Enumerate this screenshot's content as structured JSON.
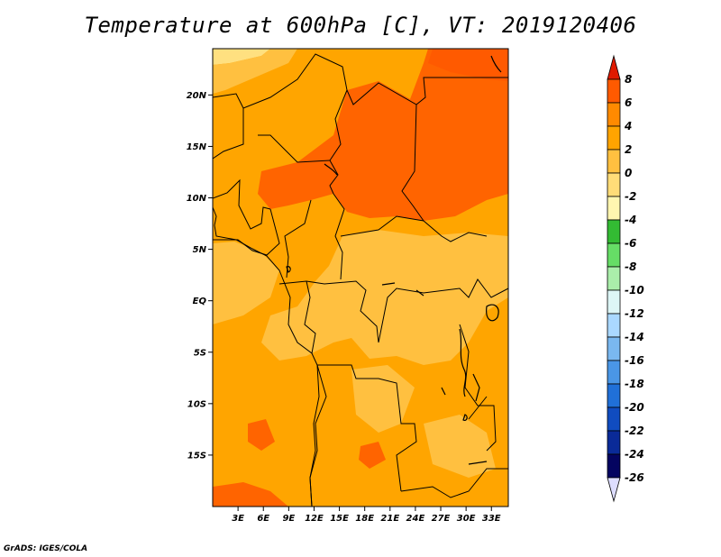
{
  "title": "Temperature at 600hPa [C], VT: 2019120406",
  "credit": "GrADS: IGES/COLA",
  "axes": {
    "lat_ticks": [
      {
        "value": 20,
        "label": "20N"
      },
      {
        "value": 15,
        "label": "15N"
      },
      {
        "value": 10,
        "label": "10N"
      },
      {
        "value": 5,
        "label": "5N"
      },
      {
        "value": 0,
        "label": "EQ"
      },
      {
        "value": -5,
        "label": "5S"
      },
      {
        "value": -10,
        "label": "10S"
      },
      {
        "value": -15,
        "label": "15S"
      }
    ],
    "lon_ticks": [
      {
        "value": 3,
        "label": "3E"
      },
      {
        "value": 6,
        "label": "6E"
      },
      {
        "value": 9,
        "label": "9E"
      },
      {
        "value": 12,
        "label": "12E"
      },
      {
        "value": 15,
        "label": "15E"
      },
      {
        "value": 18,
        "label": "18E"
      },
      {
        "value": 21,
        "label": "21E"
      },
      {
        "value": 24,
        "label": "24E"
      },
      {
        "value": 27,
        "label": "27E"
      },
      {
        "value": 30,
        "label": "30E"
      },
      {
        "value": 33,
        "label": "33E"
      }
    ],
    "lon_range": [
      0,
      35
    ],
    "lat_range": [
      -20,
      24.5
    ]
  },
  "colorbar": {
    "levels": [
      "8",
      "6",
      "4",
      "2",
      "0",
      "-2",
      "-4",
      "-6",
      "-8",
      "-10",
      "-12",
      "-14",
      "-16",
      "-18",
      "-20",
      "-22",
      "-24",
      "-26"
    ],
    "colors": [
      "#e01a00",
      "#ff5a00",
      "#ff8a00",
      "#ffa400",
      "#ffc040",
      "#ffdc78",
      "#fff6b0",
      "#33bb33",
      "#66dd66",
      "#aaeeaa",
      "#ddf6f6",
      "#aad8ff",
      "#7ab8f0",
      "#4a96e6",
      "#2070d8",
      "#104cc0",
      "#0a2a98",
      "#040460",
      "#ddddff"
    ]
  },
  "regions_colors": {
    "hot": "#ff6400",
    "warm": "#ffa500",
    "mild": "#ffc040",
    "cool": "#ffe080",
    "top": "#ff6400"
  }
}
